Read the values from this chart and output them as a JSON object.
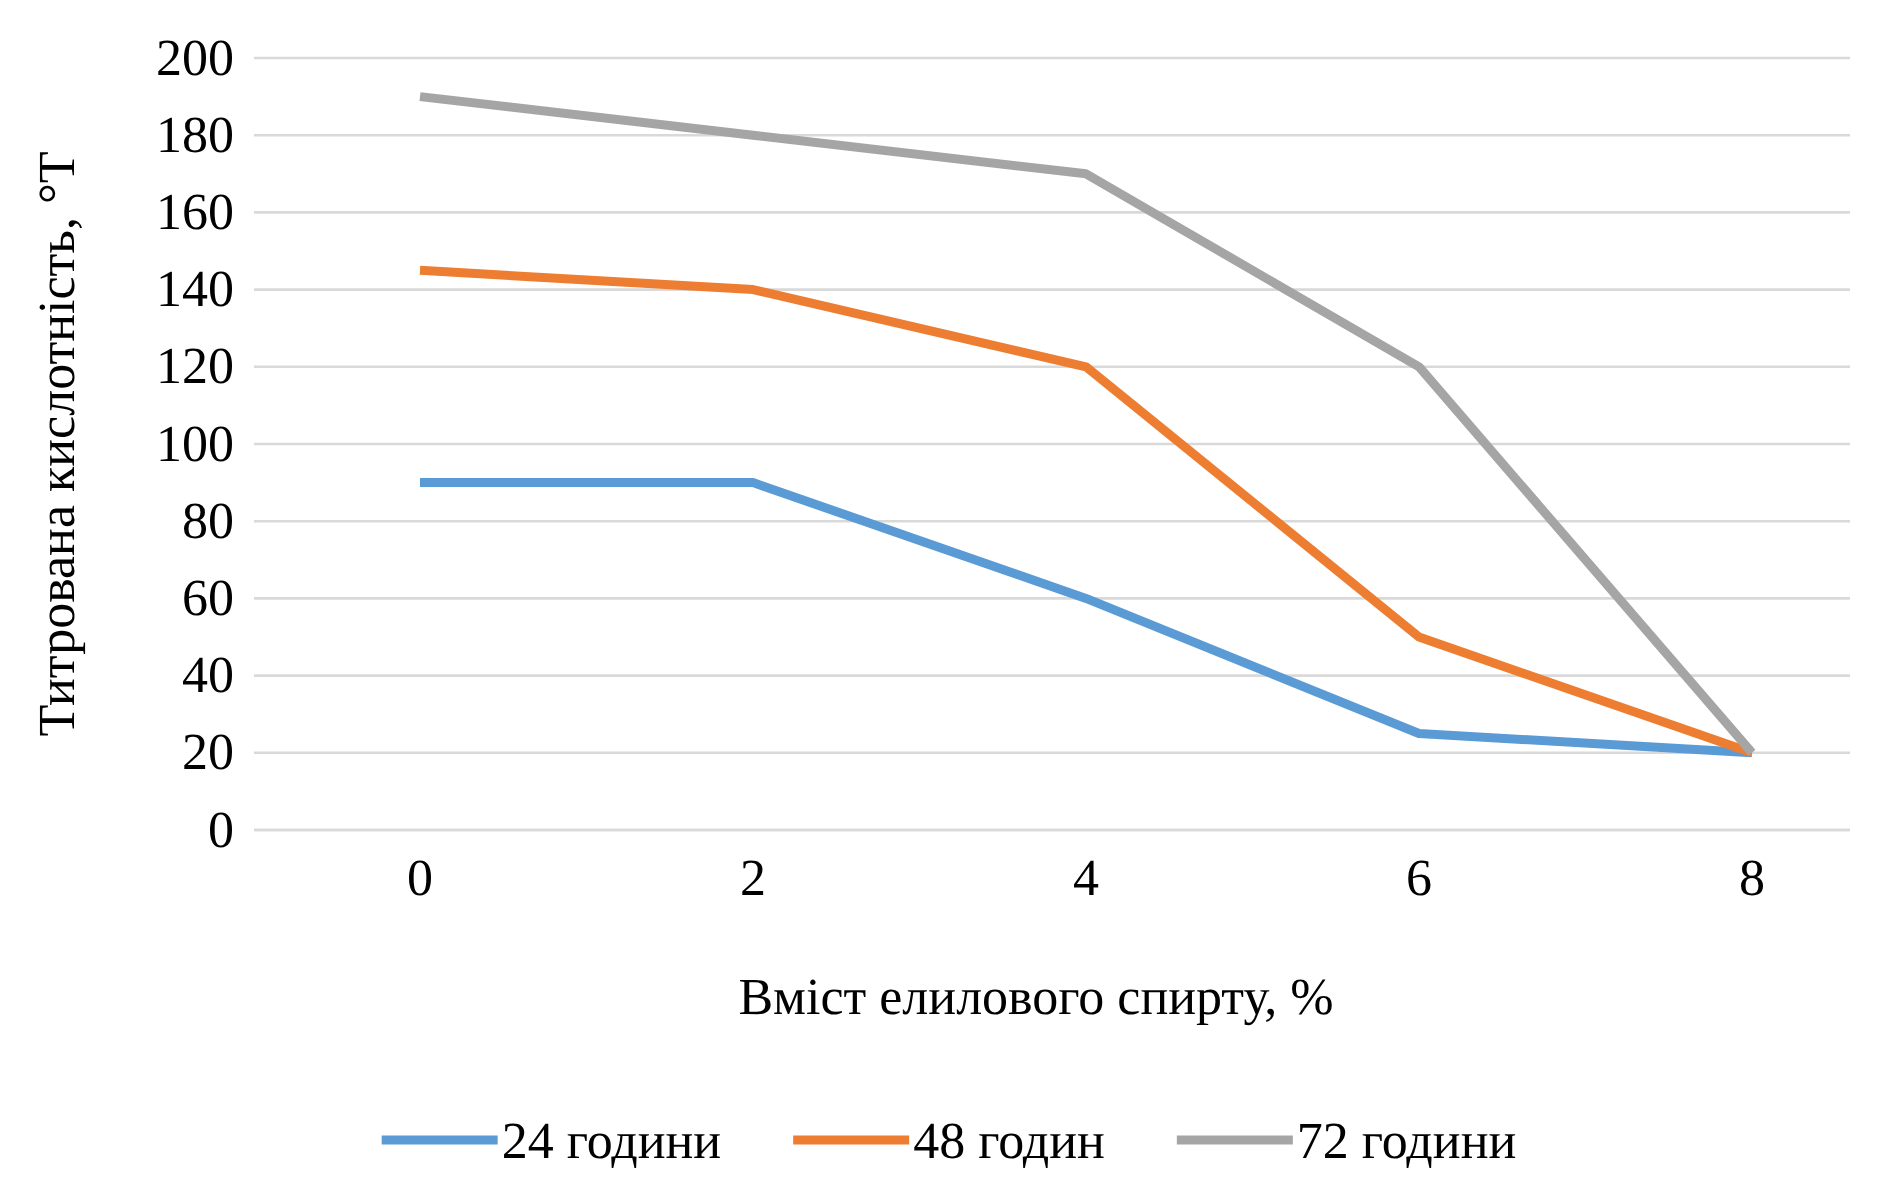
{
  "chart_data": {
    "type": "line",
    "xlabel": "Вміст елилового спирту, %",
    "ylabel": "Титрована кислотність, °Т",
    "categories": [
      "0",
      "2",
      "4",
      "6",
      "8"
    ],
    "series": [
      {
        "name": "24 години",
        "color": "#5b9bd5",
        "values": [
          90,
          90,
          60,
          25,
          20
        ]
      },
      {
        "name": "48 годин",
        "color": "#ed7d31",
        "values": [
          145,
          140,
          120,
          50,
          20
        ]
      },
      {
        "name": "72 години",
        "color": "#a5a5a5",
        "values": [
          190,
          180,
          170,
          120,
          20
        ]
      }
    ],
    "ylim": [
      0,
      200
    ],
    "yticks": [
      0,
      20,
      40,
      60,
      80,
      100,
      120,
      140,
      160,
      180,
      200
    ],
    "grid": "y",
    "legend": "bottom",
    "marker": "none",
    "line_style": "solid"
  }
}
